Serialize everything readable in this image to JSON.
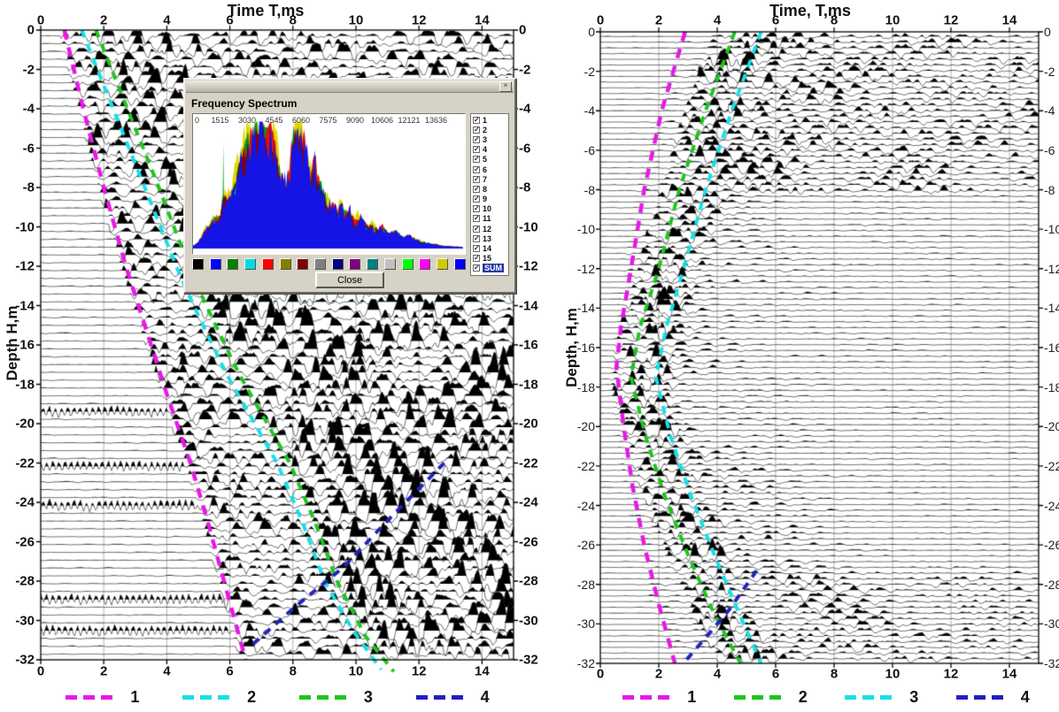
{
  "chart_data": [
    {
      "type": "wiggle-seismogram",
      "panel": "left",
      "title": "Time T,ms",
      "ylabel": "Depth H,m",
      "x_ticks": [
        0,
        2,
        4,
        6,
        8,
        10,
        12,
        14
      ],
      "x_range_ms": [
        0,
        15
      ],
      "y_ticks": [
        0,
        -2,
        -4,
        -6,
        -8,
        -10,
        -12,
        -14,
        -16,
        -18,
        -20,
        -22,
        -24,
        -26,
        -28,
        -30,
        -32
      ],
      "depth_range_m": [
        0,
        -32
      ],
      "trace_count": 80,
      "picked_lines": [
        {
          "label": "1",
          "color": "#e619e6",
          "points_t_depth": [
            [
              0.75,
              0
            ],
            [
              1.35,
              -4
            ],
            [
              2.0,
              -8
            ],
            [
              2.7,
              -12
            ],
            [
              3.3,
              -15
            ],
            [
              4.0,
              -18.5
            ],
            [
              4.75,
              -22
            ],
            [
              5.3,
              -25
            ],
            [
              5.9,
              -28.5
            ],
            [
              6.5,
              -32
            ]
          ]
        },
        {
          "label": "2",
          "color": "#17dfe8",
          "points_t_depth": [
            [
              1.3,
              0
            ],
            [
              2.3,
              -4
            ],
            [
              3.3,
              -8
            ],
            [
              4.3,
              -12
            ],
            [
              4.85,
              -14
            ],
            [
              5.9,
              -17.5
            ],
            [
              7.5,
              -22
            ],
            [
              8.3,
              -25
            ],
            [
              9.0,
              -28
            ],
            [
              9.9,
              -30.5
            ],
            [
              10.8,
              -32.5
            ]
          ]
        },
        {
          "label": "3",
          "color": "#1fc41f",
          "points_t_depth": [
            [
              1.75,
              0
            ],
            [
              2.75,
              -4
            ],
            [
              3.75,
              -8
            ],
            [
              4.7,
              -12
            ],
            [
              5.25,
              -14
            ],
            [
              6.3,
              -17.5
            ],
            [
              7.9,
              -22
            ],
            [
              8.7,
              -25
            ],
            [
              9.4,
              -28
            ],
            [
              10.3,
              -30.8
            ],
            [
              11.2,
              -32.6
            ]
          ]
        },
        {
          "label": "4",
          "color": "#2121bd",
          "points_t_depth": [
            [
              12.8,
              -22
            ],
            [
              11.2,
              -24.6
            ],
            [
              9.6,
              -27.3
            ],
            [
              8.0,
              -29.4
            ],
            [
              6.6,
              -31.4
            ]
          ]
        }
      ],
      "legend": [
        {
          "label": "1",
          "color": "#e619e6"
        },
        {
          "label": "2",
          "color": "#17dfe8"
        },
        {
          "label": "3",
          "color": "#1fc41f"
        },
        {
          "label": "4",
          "color": "#2121bd"
        }
      ]
    },
    {
      "type": "wiggle-seismogram",
      "panel": "right",
      "title": "Time, T,ms",
      "ylabel": "Depth, H,m",
      "x_ticks": [
        0,
        2,
        4,
        6,
        8,
        10,
        12,
        14
      ],
      "x_range_ms": [
        0,
        15
      ],
      "y_ticks": [
        0,
        -2,
        -4,
        -6,
        -8,
        -10,
        -12,
        -14,
        -16,
        -18,
        -20,
        -22,
        -24,
        -26,
        -28,
        -30,
        -32
      ],
      "depth_range_m": [
        0,
        -32
      ],
      "trace_count": 110,
      "picked_lines": [
        {
          "label": "1",
          "color": "#e619e6",
          "points_t_depth": [
            [
              2.9,
              0
            ],
            [
              2.1,
              -4
            ],
            [
              1.5,
              -8
            ],
            [
              1.05,
              -12
            ],
            [
              0.7,
              -15
            ],
            [
              0.55,
              -17
            ],
            [
              0.8,
              -20
            ],
            [
              1.1,
              -23
            ],
            [
              1.5,
              -26
            ],
            [
              2.0,
              -29
            ],
            [
              2.55,
              -32
            ]
          ]
        },
        {
          "label": "2",
          "color": "#1fc41f",
          "points_t_depth": [
            [
              4.6,
              0
            ],
            [
              3.6,
              -4
            ],
            [
              2.7,
              -8
            ],
            [
              2.0,
              -12
            ],
            [
              1.35,
              -15
            ],
            [
              1.05,
              -17.5
            ],
            [
              1.55,
              -20.5
            ],
            [
              2.2,
              -23.5
            ],
            [
              3.0,
              -26.5
            ],
            [
              3.9,
              -29.5
            ],
            [
              4.8,
              -32
            ]
          ]
        },
        {
          "label": "3",
          "color": "#17dfe8",
          "points_t_depth": [
            [
              5.5,
              0
            ],
            [
              4.5,
              -4
            ],
            [
              3.6,
              -8
            ],
            [
              2.85,
              -12
            ],
            [
              2.25,
              -15
            ],
            [
              1.9,
              -17.5
            ],
            [
              2.4,
              -20.5
            ],
            [
              3.1,
              -23.5
            ],
            [
              3.9,
              -26.5
            ],
            [
              4.7,
              -29.3
            ],
            [
              5.5,
              -32
            ]
          ]
        },
        {
          "label": "4",
          "color": "#2121bd",
          "points_t_depth": [
            [
              5.35,
              -27.3
            ],
            [
              4.4,
              -29.3
            ],
            [
              3.6,
              -30.7
            ],
            [
              2.9,
              -31.9
            ]
          ]
        }
      ],
      "legend": [
        {
          "label": "1",
          "color": "#e619e6"
        },
        {
          "label": "2",
          "color": "#1fc41f"
        },
        {
          "label": "3",
          "color": "#17dfe8"
        },
        {
          "label": "4",
          "color": "#2121bd"
        }
      ]
    },
    {
      "type": "area",
      "panel": "frequency-spectrum",
      "title": "Frequency Spectrum",
      "x_tick_labels": [
        "0",
        "1515",
        "3030",
        "4545",
        "6060",
        "7575",
        "9090",
        "10606",
        "12121",
        "13636"
      ],
      "x_range_hz": [
        0,
        15151
      ],
      "fill_color": "#1414e6",
      "sum_points_hz_amp": [
        [
          0,
          0.02
        ],
        [
          300,
          0.05
        ],
        [
          700,
          0.15
        ],
        [
          1100,
          0.22
        ],
        [
          1515,
          0.28
        ],
        [
          1750,
          0.45
        ],
        [
          2000,
          0.4
        ],
        [
          2300,
          0.52
        ],
        [
          2600,
          0.65
        ],
        [
          2900,
          0.85
        ],
        [
          3100,
          0.95
        ],
        [
          3300,
          0.82
        ],
        [
          3500,
          1.0
        ],
        [
          3700,
          0.9
        ],
        [
          3900,
          0.97
        ],
        [
          4100,
          0.84
        ],
        [
          4300,
          0.9
        ],
        [
          4545,
          0.8
        ],
        [
          4800,
          0.66
        ],
        [
          5100,
          0.52
        ],
        [
          5400,
          0.6
        ],
        [
          5650,
          0.9
        ],
        [
          5900,
          1.0
        ],
        [
          6060,
          0.93
        ],
        [
          6300,
          0.78
        ],
        [
          6550,
          0.6
        ],
        [
          6800,
          0.66
        ],
        [
          7100,
          0.5
        ],
        [
          7400,
          0.42
        ],
        [
          7575,
          0.36
        ],
        [
          7900,
          0.3
        ],
        [
          8200,
          0.34
        ],
        [
          8500,
          0.26
        ],
        [
          8800,
          0.3
        ],
        [
          9090,
          0.22
        ],
        [
          9400,
          0.25
        ],
        [
          9700,
          0.18
        ],
        [
          10000,
          0.2
        ],
        [
          10300,
          0.15
        ],
        [
          10606,
          0.17
        ],
        [
          11000,
          0.12
        ],
        [
          11400,
          0.14
        ],
        [
          11800,
          0.09
        ],
        [
          12121,
          0.1
        ],
        [
          12500,
          0.07
        ],
        [
          13000,
          0.05
        ],
        [
          13636,
          0.03
        ],
        [
          14200,
          0.02
        ],
        [
          15151,
          0.01
        ]
      ]
    }
  ],
  "dialog": {
    "header": "Frequency Spectrum",
    "channels": [
      "1",
      "2",
      "3",
      "4",
      "5",
      "6",
      "7",
      "8",
      "9",
      "10",
      "11",
      "12",
      "13",
      "14",
      "15",
      "SUM"
    ],
    "selected_channel": "SUM",
    "all_channels_checked": true,
    "close_label": "Close",
    "swatches": [
      "#000000",
      "#0000ff",
      "#008000",
      "#00dcdc",
      "#ff0000",
      "#808000",
      "#800000",
      "#808080",
      "#000080",
      "#800080",
      "#008080",
      "#c0c0c0",
      "#00ff00",
      "#ff00ff",
      "#cccc00",
      "#0000ff"
    ]
  }
}
